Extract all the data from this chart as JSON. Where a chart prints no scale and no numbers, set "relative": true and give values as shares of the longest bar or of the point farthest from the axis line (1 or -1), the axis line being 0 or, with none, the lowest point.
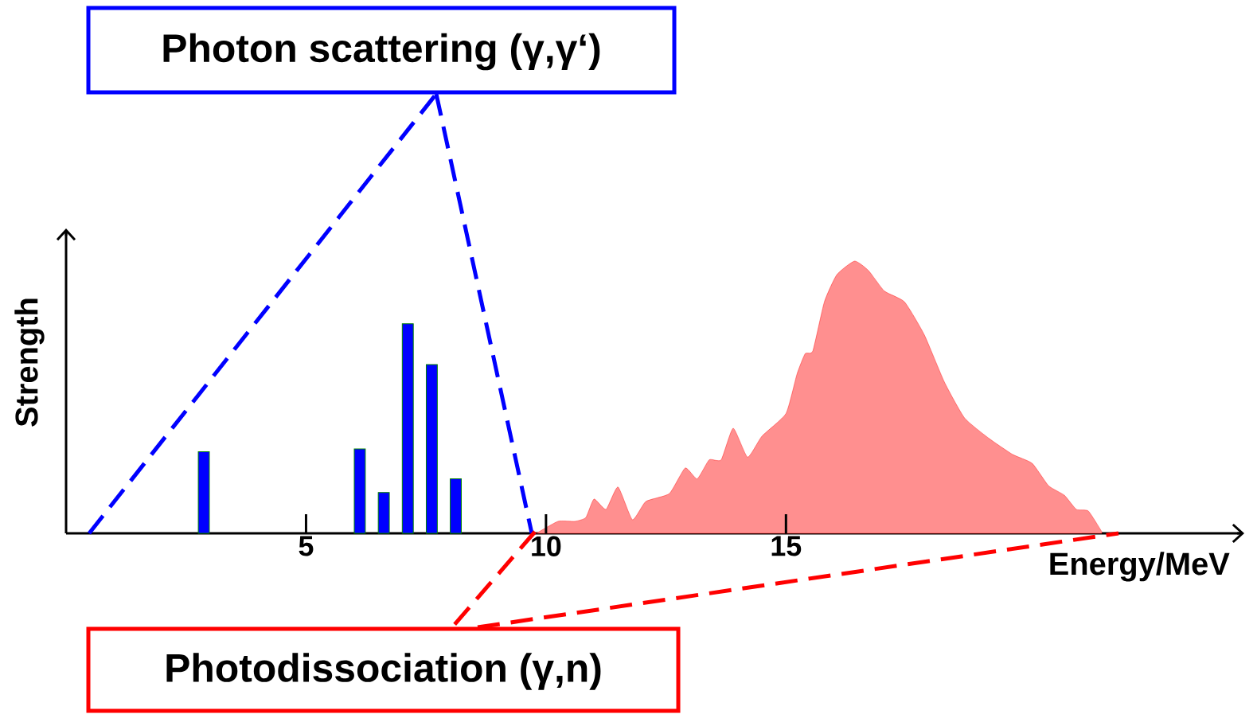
{
  "chart_data": {
    "type": "bar",
    "relative": true,
    "xlabel": "Energy/MeV",
    "ylabel": "Strength",
    "xlim": [
      0,
      24.5
    ],
    "xticks": [
      5,
      10,
      15
    ],
    "annotations": [
      "Photon scattering (γ,γ‘)",
      "Photodissociation (γ,n)"
    ],
    "series": [
      {
        "color": "#0000ff",
        "x": [
          2.87,
          6.12,
          6.62,
          7.12,
          7.62,
          8.12
        ],
        "values": [
          0.3,
          0.31,
          0.15,
          0.77,
          0.62,
          0.2
        ]
      },
      {
        "type": "area",
        "color": "#ff8f8f",
        "x": [
          9.8,
          10.25,
          10.6,
          10.83,
          11.0,
          11.25,
          11.5,
          11.8,
          12.08,
          12.57,
          12.9,
          13.15,
          13.4,
          13.65,
          13.9,
          14.2,
          14.5,
          15.0,
          15.23,
          15.4,
          15.56,
          15.8,
          16.06,
          16.43,
          16.72,
          17.05,
          17.47,
          17.88,
          18.3,
          18.72,
          19.22,
          19.72,
          20.13,
          20.47,
          20.8,
          21.05,
          21.3,
          21.58
        ],
        "values": [
          0,
          0.044,
          0.044,
          0.058,
          0.126,
          0.088,
          0.17,
          0.05,
          0.117,
          0.146,
          0.24,
          0.2,
          0.27,
          0.27,
          0.386,
          0.28,
          0.357,
          0.44,
          0.585,
          0.66,
          0.67,
          0.85,
          0.95,
          1.0,
          0.965,
          0.89,
          0.85,
          0.73,
          0.556,
          0.424,
          0.35,
          0.29,
          0.257,
          0.175,
          0.14,
          0.088,
          0.082,
          0.006
        ]
      }
    ]
  }
}
